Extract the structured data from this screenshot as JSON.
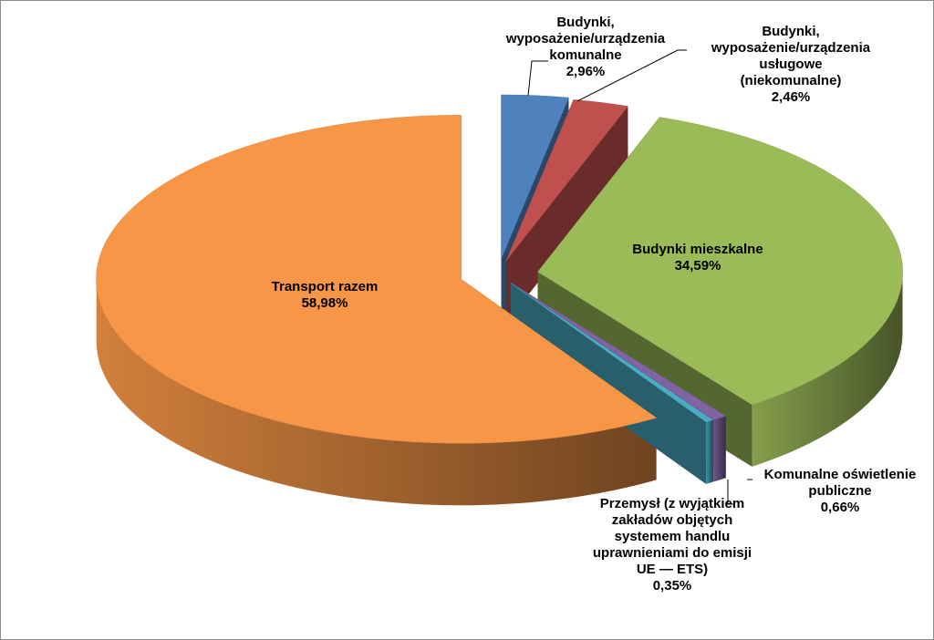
{
  "chart_data": {
    "type": "pie",
    "title": "",
    "categories": [
      "Budynki, wyposażenie/urządzenia komunalne",
      "Budynki, wyposażenie/urządzenia usługowe (niekomunalne)",
      "Budynki mieszkalne",
      "Komunalne oświetlenie publiczne",
      "Przemysł (z wyjątkiem zakładów objętych systemem handlu uprawnieniami do emisji UE — ETS)",
      "Transport razem"
    ],
    "values": [
      2.96,
      2.46,
      34.59,
      0.66,
      0.35,
      58.98
    ],
    "colors": [
      "#4f81bd",
      "#c0504d",
      "#9bbb59",
      "#8064a2",
      "#4bacc6",
      "#f79646"
    ],
    "label_lines": [
      [
        "Budynki,",
        "wyposażenie/urządzenia",
        "komunalne",
        "2,96%"
      ],
      [
        "Budynki,",
        "wyposażenie/urządzenia",
        "usługowe",
        "(niekomunalne)",
        "2,46%"
      ],
      [
        "Budynki mieszkalne",
        "34,59%"
      ],
      [
        "Komunalne oświetlenie",
        "publiczne",
        "0,66%"
      ],
      [
        "Przemysł (z wyjątkiem",
        "zakładów objętych",
        "systemem handlu",
        "uprawnieniami do emisji",
        "UE — ETS)",
        "0,35%"
      ],
      [
        "Transport razem",
        "58,98%"
      ]
    ],
    "legend": "none",
    "style": "3d-exploded"
  }
}
